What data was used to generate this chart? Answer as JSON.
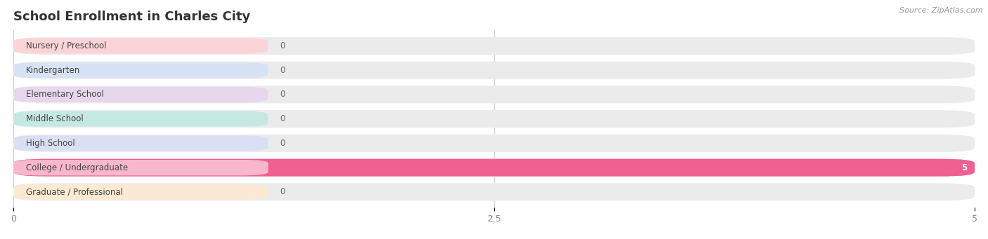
{
  "title": "School Enrollment in Charles City",
  "source": "Source: ZipAtlas.com",
  "categories": [
    "Nursery / Preschool",
    "Kindergarten",
    "Elementary School",
    "Middle School",
    "High School",
    "College / Undergraduate",
    "Graduate / Professional"
  ],
  "values": [
    0,
    0,
    0,
    0,
    0,
    5,
    0
  ],
  "bar_colors": [
    "#f4a0a8",
    "#a8c0e8",
    "#c8a8d8",
    "#80d0c0",
    "#b0b8e8",
    "#f06090",
    "#f8d0a0"
  ],
  "background_color": "#ffffff",
  "row_bg_even": "#f0f0f0",
  "row_bg_odd": "#f8f8f8",
  "xlim": [
    0,
    5.0
  ],
  "xticks": [
    0,
    2.5,
    5
  ],
  "xtick_labels": [
    "0",
    "2.5",
    "5"
  ],
  "title_fontsize": 13,
  "label_fontsize": 8.5,
  "value_fontsize": 8.5,
  "source_fontsize": 8
}
